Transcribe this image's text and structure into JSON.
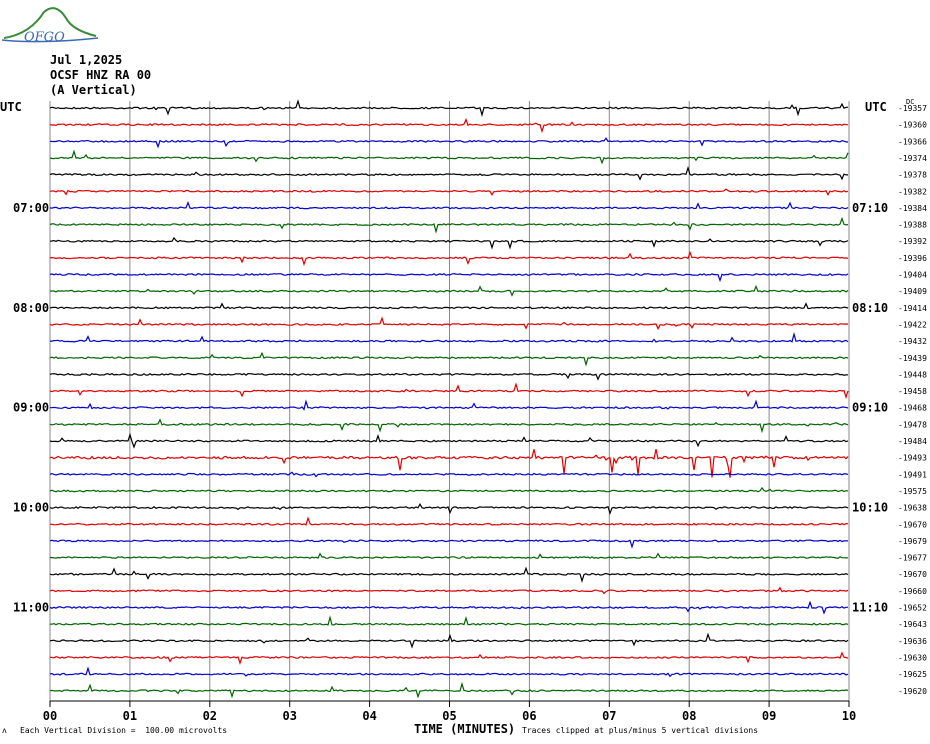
{
  "logo_text": "OFGO",
  "header": {
    "date": "Jul 1,2025",
    "station": "OCSF HNZ RA 00",
    "component": "(A Vertical)"
  },
  "chart_data": {
    "type": "line",
    "title": "OCSF HNZ RA 00 (A Vertical)",
    "xlabel": "TIME (MINUTES)",
    "ylabel": "",
    "x_ticks": [
      "00",
      "01",
      "02",
      "03",
      "04",
      "05",
      "06",
      "07",
      "08",
      "09",
      "10"
    ],
    "x_range": [
      0,
      10
    ],
    "grid": true,
    "trace_colors": [
      "#000000",
      "#dd0000",
      "#0000cc",
      "#006400"
    ],
    "left_axis_label": "UTC",
    "right_axis_label": "UTC",
    "left_hour_labels": [
      "07:00",
      "08:00",
      "09:00",
      "10:00",
      "11:00"
    ],
    "right_hour_labels": [
      "07:10",
      "08:10",
      "09:10",
      "10:10",
      "11:10"
    ],
    "right_dc_header": "DC",
    "dc_offsets": [
      "-19357",
      "-19360",
      "-19366",
      "-19374",
      "-19378",
      "-19382",
      "-19384",
      "-19388",
      "-19392",
      "-19396",
      "-19404",
      "-19409",
      "-19414",
      "-19422",
      "-19432",
      "-19439",
      "-19448",
      "-19458",
      "-19468",
      "-19478",
      "-19484",
      "-19493",
      "-19491",
      "-19575",
      "-19638",
      "-19670",
      "-19679",
      "-19677",
      "-19670",
      "-19660",
      "-19652",
      "-19643",
      "-19636",
      "-19630",
      "-19625",
      "-19620"
    ],
    "scale_note": "Each Vertical Division =  100.00 microvolts",
    "clip_note": "Traces clipped at plus/minus 5 vertical divisions"
  }
}
